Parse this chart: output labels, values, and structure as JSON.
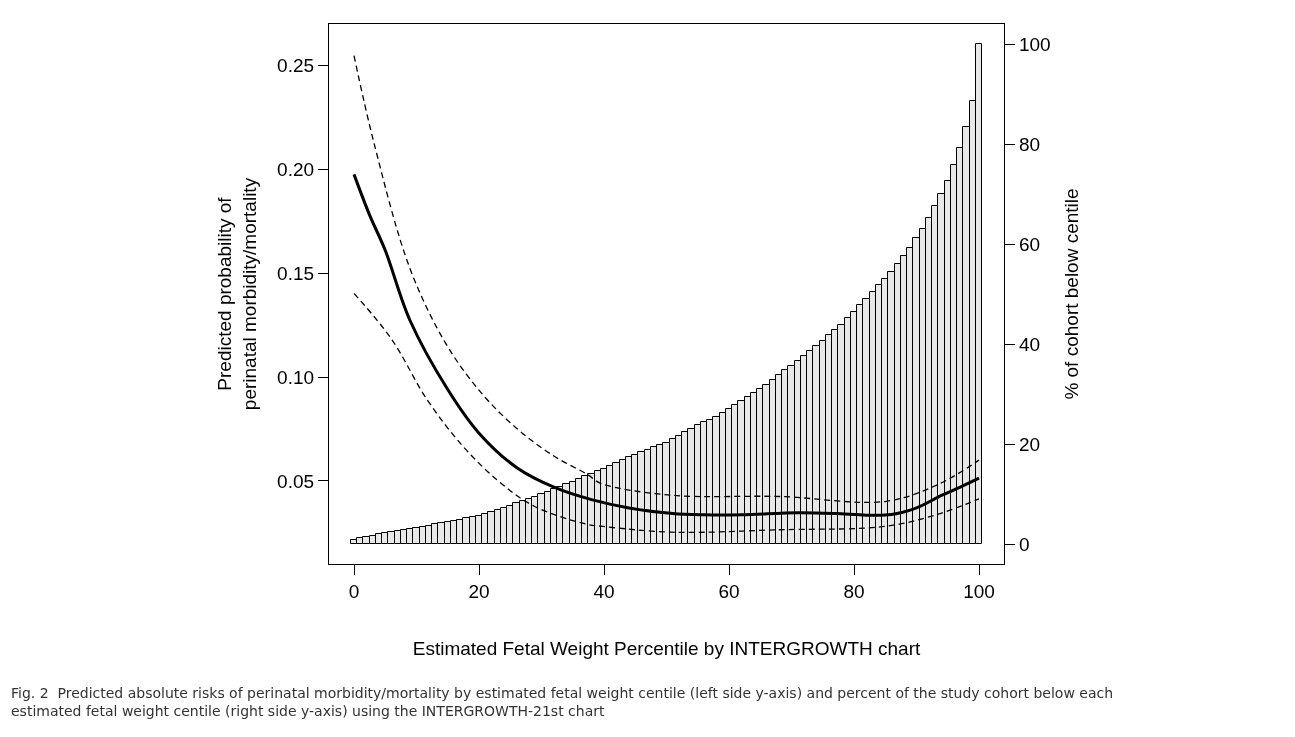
{
  "chart_data": {
    "type": "line",
    "xlabel": "Estimated Fetal Weight Percentile by INTERGROWTH chart",
    "ylabel": "Predicted probability of\nperinatal morbidity/mortality",
    "y2label": "% of cohort below centile",
    "annotations": [
      "Fig. 2  Predicted absolute risks of perinatal morbidity/mortality by estimated fetal weight centile (left side y-axis) and percent of the study cohort below each estimated fetal weight centile (right side y-axis) using the INTERGROWTH-21st chart"
    ],
    "xlim": [
      -4,
      104
    ],
    "xticks": [
      0,
      20,
      40,
      60,
      80,
      100
    ],
    "ylim": [
      0.01,
      0.27
    ],
    "yticks": [
      {
        "value": 0.05,
        "label": "0.05"
      },
      {
        "value": 0.1,
        "label": "0.10"
      },
      {
        "value": 0.15,
        "label": "0.15"
      },
      {
        "value": 0.2,
        "label": "0.20"
      },
      {
        "value": 0.25,
        "label": "0.25"
      }
    ],
    "y2lim": [
      -4,
      104
    ],
    "y2ticks": [
      0,
      20,
      40,
      60,
      80,
      100
    ],
    "series": [
      {
        "type": "bar",
        "axis": "y2",
        "color": "#e8e8e8",
        "x": [
          0,
          1,
          2,
          3,
          4,
          5,
          6,
          7,
          8,
          9,
          10,
          11,
          12,
          13,
          14,
          15,
          16,
          17,
          18,
          19,
          20,
          21,
          22,
          23,
          24,
          25,
          26,
          27,
          28,
          29,
          30,
          31,
          32,
          33,
          34,
          35,
          36,
          37,
          38,
          39,
          40,
          41,
          42,
          43,
          44,
          45,
          46,
          47,
          48,
          49,
          50,
          51,
          52,
          53,
          54,
          55,
          56,
          57,
          58,
          59,
          60,
          61,
          62,
          63,
          64,
          65,
          66,
          67,
          68,
          69,
          70,
          71,
          72,
          73,
          74,
          75,
          76,
          77,
          78,
          79,
          80,
          81,
          82,
          83,
          84,
          85,
          86,
          87,
          88,
          89,
          90,
          91,
          92,
          93,
          94,
          95,
          96,
          97,
          98,
          99,
          100
        ],
        "values": [
          0.9,
          1.2,
          1.5,
          1.7,
          2.0,
          2.2,
          2.4,
          2.6,
          2.8,
          3.0,
          3.2,
          3.5,
          3.7,
          4.0,
          4.2,
          4.5,
          4.7,
          4.9,
          5.2,
          5.4,
          5.7,
          6.1,
          6.5,
          6.9,
          7.3,
          7.7,
          8.2,
          8.6,
          9.1,
          9.5,
          10.0,
          10.5,
          11.0,
          11.5,
          12.0,
          12.5,
          13.0,
          13.6,
          14.1,
          14.6,
          15.1,
          15.7,
          16.3,
          16.9,
          17.5,
          17.8,
          18.4,
          18.9,
          19.4,
          19.9,
          20.3,
          21.0,
          21.7,
          22.4,
          23.1,
          23.9,
          24.4,
          24.9,
          25.5,
          26.3,
          27.1,
          27.8,
          28.6,
          29.5,
          30.3,
          31.1,
          31.9,
          32.9,
          33.8,
          34.8,
          35.6,
          36.7,
          37.7,
          38.6,
          39.6,
          40.7,
          41.8,
          42.8,
          43.9,
          45.3,
          46.5,
          47.8,
          49.0,
          50.5,
          51.8,
          53.1,
          54.5,
          56.0,
          57.6,
          59.3,
          61.2,
          63.1,
          65.2,
          67.6,
          70.0,
          72.7,
          75.8,
          79.2,
          83.5,
          88.7,
          100
        ]
      },
      {
        "line_style": "solid",
        "color": "#000000",
        "x": [
          0,
          2.5,
          5,
          9,
          15,
          20,
          26,
          32,
          38,
          44,
          51,
          56,
          62,
          71,
          77,
          82,
          86,
          90,
          94,
          97,
          100
        ],
        "values": [
          0.1976,
          0.178,
          0.161,
          0.127,
          0.094,
          0.073,
          0.0565,
          0.047,
          0.041,
          0.037,
          0.0343,
          0.0337,
          0.0337,
          0.0347,
          0.0343,
          0.0335,
          0.0338,
          0.037,
          0.043,
          0.047,
          0.0513
        ]
      },
      {
        "line_style": "dashed",
        "color": "#000000",
        "x": [
          0,
          3.2,
          8.9,
          14.6,
          20.3,
          26,
          31.7,
          37.4,
          39.5,
          50.9,
          68.1,
          85.2,
          93.8,
          100
        ],
        "values": [
          0.2548,
          0.2127,
          0.1527,
          0.1166,
          0.0926,
          0.0754,
          0.0625,
          0.053,
          0.0488,
          0.0431,
          0.0425,
          0.0402,
          0.0488,
          0.06
        ]
      },
      {
        "line_style": "dashed",
        "color": "#000000",
        "x": [
          0,
          6,
          11.7,
          17.4,
          23.2,
          28.9,
          37.4,
          39.5,
          50.9,
          68.1,
          85.2,
          93.8,
          100
        ],
        "values": [
          0.1403,
          0.1183,
          0.0891,
          0.0668,
          0.0497,
          0.0377,
          0.029,
          0.0282,
          0.0253,
          0.0265,
          0.0282,
          0.0343,
          0.0414
        ]
      }
    ]
  }
}
